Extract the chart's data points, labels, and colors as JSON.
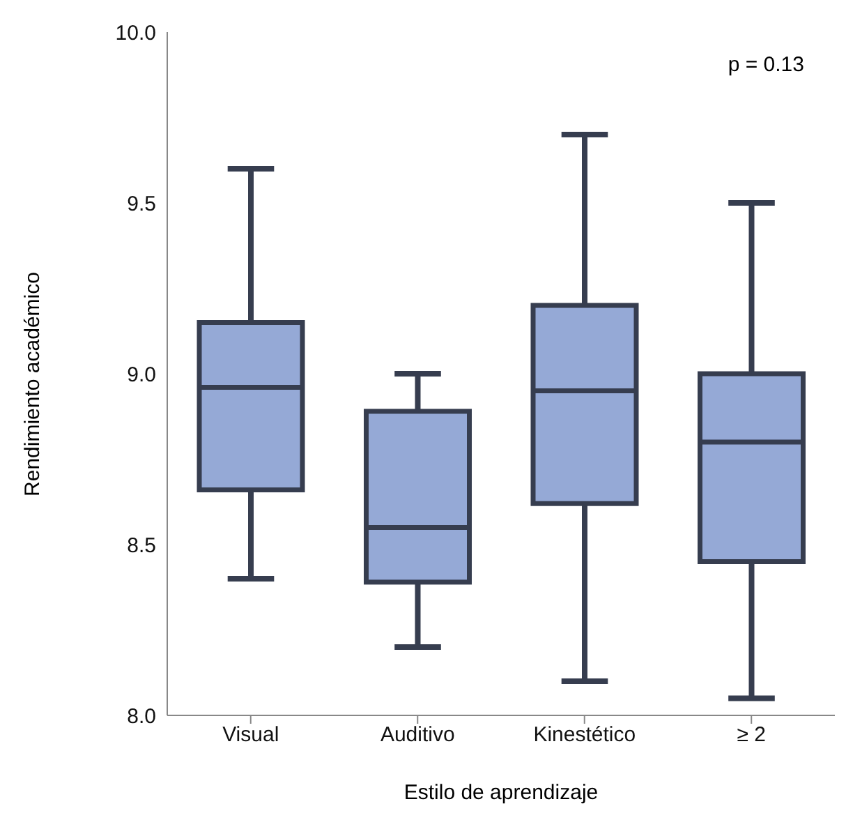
{
  "chart_data": {
    "type": "box",
    "xlabel": "Estilo de aprendizaje",
    "ylabel": "Rendimiento académico",
    "categories": [
      "Visual",
      "Auditivo",
      "Kinestético",
      "≥ 2"
    ],
    "boxes": [
      {
        "low": 8.4,
        "q1": 8.66,
        "median": 8.96,
        "q3": 9.15,
        "high": 9.6
      },
      {
        "low": 8.2,
        "q1": 8.39,
        "median": 8.55,
        "q3": 8.89,
        "high": 9.0
      },
      {
        "low": 8.1,
        "q1": 8.62,
        "median": 8.95,
        "q3": 9.2,
        "high": 9.7
      },
      {
        "low": 8.05,
        "q1": 8.45,
        "median": 8.8,
        "q3": 9.0,
        "high": 9.5
      }
    ],
    "color": "#95a9d6",
    "ylim": [
      8.0,
      10.0
    ],
    "yticks": [
      {
        "value": 8,
        "label": "8.0"
      },
      {
        "value": 8.5,
        "label": "8.5"
      },
      {
        "value": 9,
        "label": "9.0"
      },
      {
        "value": 9.5,
        "label": "9.5"
      },
      {
        "value": 10,
        "label": "10.0"
      }
    ],
    "annotations": [
      "p = 0.13"
    ],
    "grid": false,
    "legend": false
  }
}
